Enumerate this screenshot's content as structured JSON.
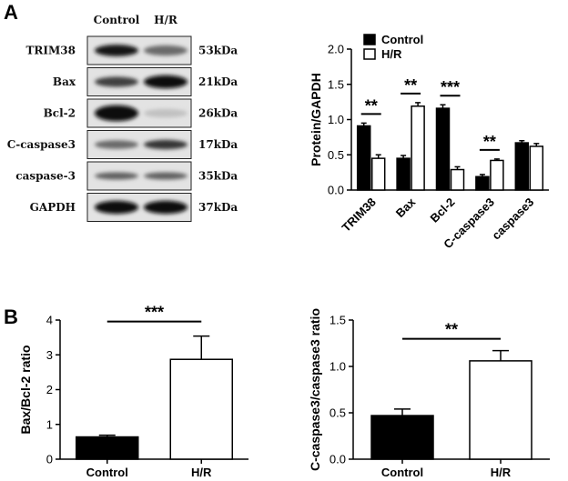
{
  "panels": {
    "a": "A",
    "b": "B"
  },
  "western_blot": {
    "columns": [
      "Control",
      "H/R"
    ],
    "rows": [
      {
        "label": "TRIM38",
        "kda": "53kDa",
        "intensity": [
          0.95,
          0.55
        ],
        "thickness": [
          0.55,
          0.45
        ]
      },
      {
        "label": "Bax",
        "kda": "21kDa",
        "intensity": [
          0.75,
          1.0
        ],
        "thickness": [
          0.45,
          0.65
        ]
      },
      {
        "label": "Bcl-2",
        "kda": "26kDa",
        "intensity": [
          1.0,
          0.15
        ],
        "thickness": [
          0.85,
          0.35
        ]
      },
      {
        "label": "C-caspase3",
        "kda": "17kDa",
        "intensity": [
          0.55,
          0.8
        ],
        "thickness": [
          0.35,
          0.4
        ]
      },
      {
        "label": "caspase-3",
        "kda": "35kDa",
        "intensity": [
          0.6,
          0.6
        ],
        "thickness": [
          0.25,
          0.25
        ]
      },
      {
        "label": "GAPDH",
        "kda": "37kDa",
        "intensity": [
          1.0,
          1.0
        ],
        "thickness": [
          0.65,
          0.65
        ]
      }
    ]
  },
  "chart_data": [
    {
      "type": "bar",
      "ylabel": "Protein/GAPDH",
      "ylim": [
        0,
        2.0
      ],
      "yticks": [
        "0.0",
        "0.5",
        "1.0",
        "1.5",
        "2.0"
      ],
      "categories": [
        "TRIM38",
        "Bax",
        "Bcl-2",
        "C-caspase3",
        "caspase3"
      ],
      "series": [
        {
          "name": "Control",
          "color": "#000000",
          "values": [
            0.91,
            0.45,
            1.16,
            0.19,
            0.67
          ],
          "errors": [
            0.04,
            0.04,
            0.05,
            0.03,
            0.03
          ]
        },
        {
          "name": "H/R",
          "color": "#ffffff",
          "values": [
            0.45,
            1.19,
            0.29,
            0.42,
            0.62
          ],
          "errors": [
            0.05,
            0.05,
            0.04,
            0.02,
            0.04
          ]
        }
      ],
      "significance": [
        {
          "category": 0,
          "label": "**"
        },
        {
          "category": 1,
          "label": "**"
        },
        {
          "category": 2,
          "label": "***"
        },
        {
          "category": 3,
          "label": "**"
        }
      ],
      "legend_position": "top-right"
    },
    {
      "type": "bar",
      "ylabel": "Bax/Bcl-2 ratio",
      "ylim": [
        0,
        4
      ],
      "yticks": [
        "0",
        "1",
        "2",
        "3",
        "4"
      ],
      "categories": [
        "Control",
        "H/R"
      ],
      "values": [
        0.64,
        2.87
      ],
      "errors": [
        0.05,
        0.67
      ],
      "colors": [
        "#000000",
        "#ffffff"
      ],
      "significance": "***"
    },
    {
      "type": "bar",
      "ylabel": "C-caspase3/caspase3 ratio",
      "ylim": [
        0,
        1.5
      ],
      "yticks": [
        "0.0",
        "0.5",
        "1.0",
        "1.5"
      ],
      "categories": [
        "Control",
        "H/R"
      ],
      "values": [
        0.47,
        1.06
      ],
      "errors": [
        0.07,
        0.11
      ],
      "colors": [
        "#000000",
        "#ffffff"
      ],
      "significance": "**"
    }
  ]
}
